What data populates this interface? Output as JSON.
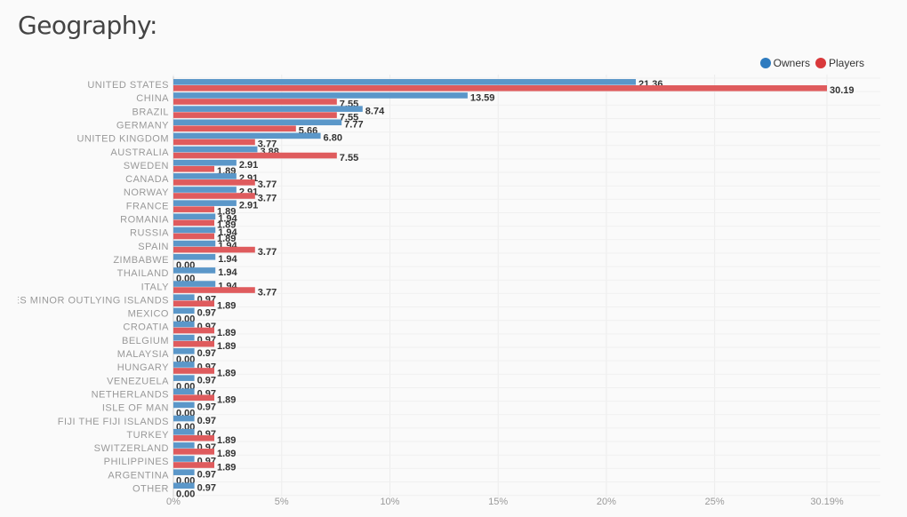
{
  "page": {
    "title": "Geography:"
  },
  "legend": [
    {
      "label": "Owners",
      "color": "#2e7bbf"
    },
    {
      "label": "Players",
      "color": "#d9393b"
    }
  ],
  "chart_data": {
    "type": "bar",
    "orientation": "horizontal",
    "title": "Geography:",
    "categories": [
      "UNITED STATES",
      "CHINA",
      "BRAZIL",
      "GERMANY",
      "UNITED KINGDOM",
      "AUSTRALIA",
      "SWEDEN",
      "CANADA",
      "NORWAY",
      "FRANCE",
      "ROMANIA",
      "RUSSIA",
      "SPAIN",
      "ZIMBABWE",
      "THAILAND",
      "ITALY",
      "UNITED STATES MINOR OUTLYING ISLANDS",
      "MEXICO",
      "CROATIA",
      "BELGIUM",
      "MALAYSIA",
      "HUNGARY",
      "VENEZUELA",
      "NETHERLANDS",
      "ISLE OF MAN",
      "FIJI THE FIJI ISLANDS",
      "TURKEY",
      "SWITZERLAND",
      "PHILIPPINES",
      "ARGENTINA",
      "OTHER"
    ],
    "series": [
      {
        "name": "Owners",
        "color": "#5b97c9",
        "values": [
          21.36,
          13.59,
          8.74,
          7.77,
          6.8,
          3.88,
          2.91,
          2.91,
          2.91,
          2.91,
          1.94,
          1.94,
          1.94,
          1.94,
          1.94,
          1.94,
          0.97,
          0.97,
          0.97,
          0.97,
          0.97,
          0.97,
          0.97,
          0.97,
          0.97,
          0.97,
          0.97,
          0.97,
          0.97,
          0.97,
          0.97
        ]
      },
      {
        "name": "Players",
        "color": "#df5b5d",
        "values": [
          30.19,
          7.55,
          7.55,
          5.66,
          3.77,
          7.55,
          1.89,
          3.77,
          3.77,
          1.89,
          1.89,
          1.89,
          3.77,
          0.0,
          0.0,
          3.77,
          1.89,
          0.0,
          1.89,
          1.89,
          0.0,
          1.89,
          0.0,
          1.89,
          0.0,
          0.0,
          1.89,
          1.89,
          1.89,
          0.0,
          0.0
        ]
      }
    ],
    "xticks": [
      "0%",
      "5%",
      "10%",
      "15%",
      "20%",
      "25%",
      "30.19%"
    ],
    "xlim": [
      0,
      30.19
    ],
    "tick_values": [
      0,
      5,
      10,
      15,
      20,
      25,
      30.19
    ],
    "grid": true,
    "legend_position": "top-right"
  }
}
